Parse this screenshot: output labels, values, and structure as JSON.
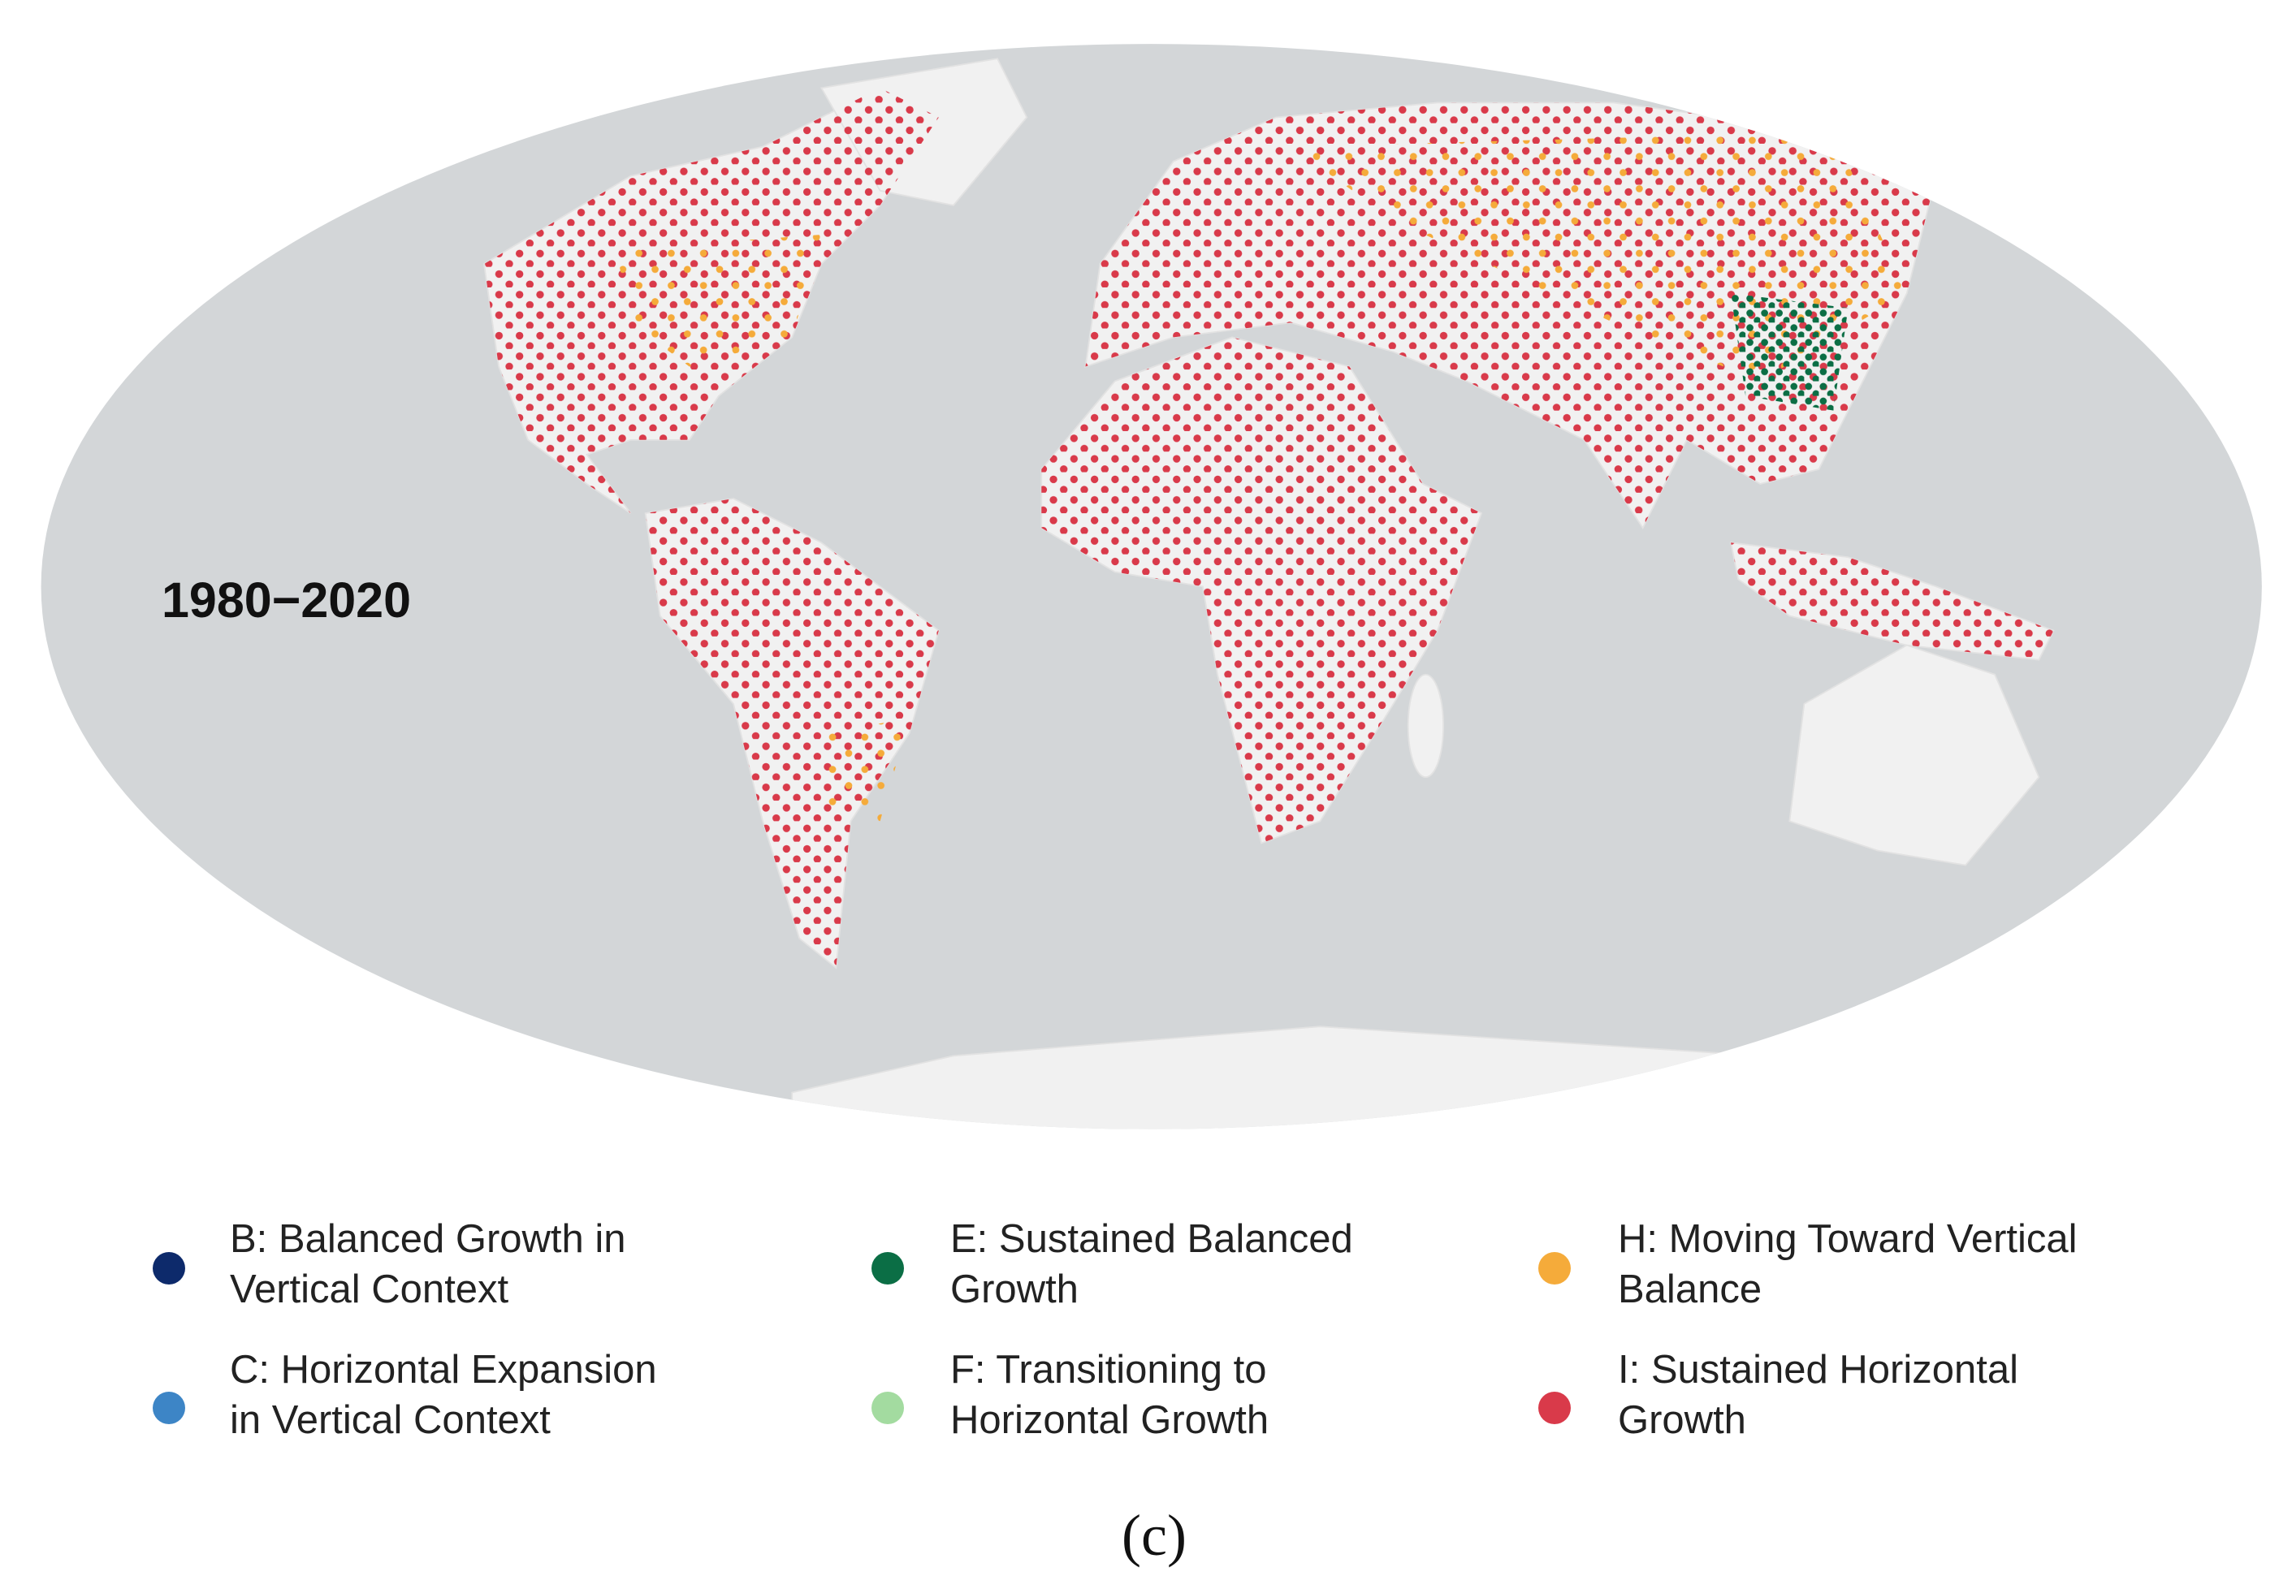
{
  "map": {
    "period_label": "1980−2020"
  },
  "legend": {
    "items": [
      {
        "lines": [
          "B: Balanced Growth in",
          "Vertical Context"
        ],
        "color": "#0d2a6b"
      },
      {
        "lines": [
          "C: Horizontal Expansion",
          "in Vertical Context"
        ],
        "color": "#3d85c6"
      },
      {
        "lines": [
          "E: Sustained Balanced",
          "Growth"
        ],
        "color": "#0b6e45"
      },
      {
        "lines": [
          "F: Transitioning to",
          "Horizontal Growth"
        ],
        "color": "#a3dba0"
      },
      {
        "lines": [
          "H: Moving Toward Vertical",
          "Balance"
        ],
        "color": "#f5ab3a"
      },
      {
        "lines": [
          "I: Sustained Horizontal",
          "Growth"
        ],
        "color": "#d93a4a"
      }
    ]
  },
  "caption": "(c)"
}
